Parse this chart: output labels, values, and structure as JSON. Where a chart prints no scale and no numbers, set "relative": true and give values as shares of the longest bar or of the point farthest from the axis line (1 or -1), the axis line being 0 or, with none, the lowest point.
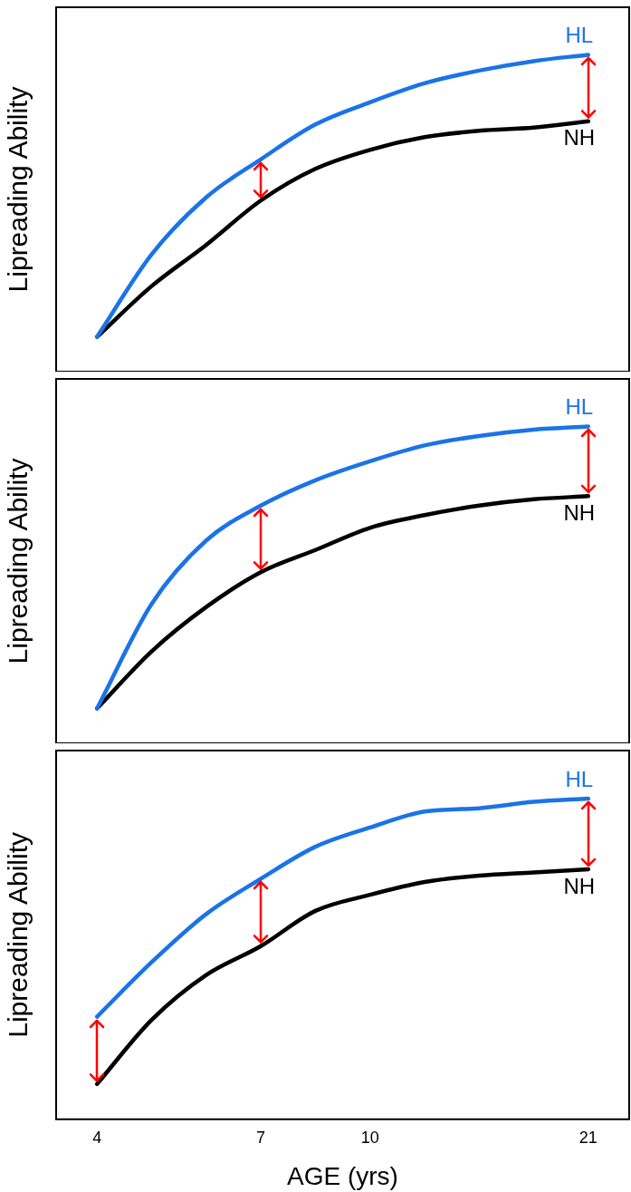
{
  "chart_data": [
    {
      "type": "line",
      "relative": true,
      "ylabel": "Lipreading Ability",
      "categories": [
        "4",
        null,
        null,
        "7",
        null,
        "10",
        null,
        null,
        null,
        "21"
      ],
      "tick_labels": false,
      "legend": false,
      "grid": false,
      "marker": "none",
      "line_style": "solid",
      "series": [
        {
          "name": "HL",
          "color": "#1a73e8",
          "values": [
            0.11,
            0.37,
            0.55,
            0.67,
            0.78,
            0.85,
            0.91,
            0.95,
            0.98,
            1
          ]
        },
        {
          "name": "NH",
          "color": "#000000",
          "values": [
            0.11,
            0.27,
            0.4,
            0.54,
            0.64,
            0.7,
            0.74,
            0.76,
            0.77,
            0.79
          ]
        }
      ]
    },
    {
      "type": "line",
      "relative": true,
      "ylabel": "Lipreading Ability",
      "categories": [
        "4",
        null,
        null,
        "7",
        null,
        "10",
        null,
        null,
        null,
        "21"
      ],
      "tick_labels": false,
      "legend": false,
      "grid": false,
      "marker": "none",
      "line_style": "solid",
      "series": [
        {
          "name": "HL",
          "color": "#1a73e8",
          "values": [
            0.11,
            0.44,
            0.64,
            0.75,
            0.83,
            0.89,
            0.94,
            0.97,
            0.99,
            1
          ]
        },
        {
          "name": "NH",
          "color": "#000000",
          "values": [
            0.11,
            0.29,
            0.43,
            0.54,
            0.61,
            0.68,
            0.72,
            0.75,
            0.77,
            0.78
          ]
        }
      ]
    },
    {
      "type": "line",
      "relative": true,
      "ylabel": "Lipreading Ability",
      "xlabel": "AGE (yrs)",
      "categories": [
        "4",
        null,
        null,
        "7",
        null,
        "10",
        null,
        null,
        null,
        "21"
      ],
      "tick_labels": "x",
      "legend": false,
      "grid": false,
      "marker": "none",
      "line_style": "solid",
      "series": [
        {
          "name": "HL",
          "color": "#1a73e8",
          "values": [
            0.32,
            0.49,
            0.64,
            0.75,
            0.85,
            0.91,
            0.96,
            0.97,
            0.99,
            1
          ]
        },
        {
          "name": "NH",
          "color": "#000000",
          "values": [
            0.11,
            0.31,
            0.45,
            0.54,
            0.65,
            0.7,
            0.74,
            0.76,
            0.77,
            0.78
          ]
        }
      ]
    }
  ]
}
